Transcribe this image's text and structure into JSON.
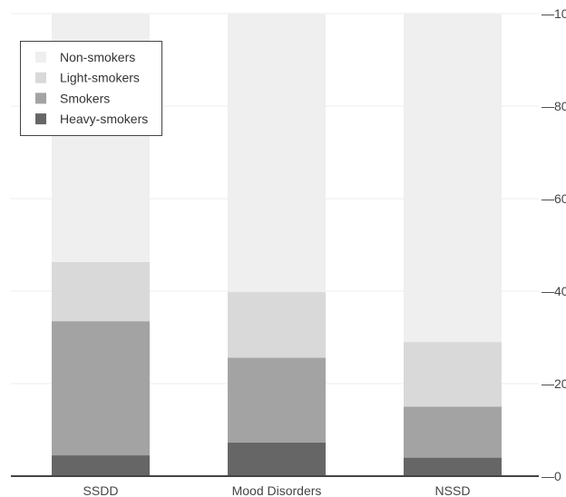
{
  "chart_data": {
    "type": "bar",
    "stacked": true,
    "categories": [
      "SSDD",
      "Mood Disorders",
      "NSSD"
    ],
    "series": [
      {
        "name": "Heavy-smokers",
        "color": "#666666",
        "values": [
          4.5,
          7.3,
          4.0
        ]
      },
      {
        "name": "Smokers",
        "color": "#a3a3a3",
        "values": [
          29.0,
          18.3,
          11.0
        ]
      },
      {
        "name": "Light-smokers",
        "color": "#d9d9d9",
        "values": [
          12.8,
          14.2,
          14.0
        ]
      },
      {
        "name": "Non-smokers",
        "color": "#efefef",
        "values": [
          53.7,
          60.2,
          71.0
        ]
      }
    ],
    "legend_order": [
      "Non-smokers",
      "Light-smokers",
      "Smokers",
      "Heavy-smokers"
    ],
    "ylim": [
      0,
      100
    ],
    "yticks": [
      0,
      20,
      40,
      60,
      80,
      100
    ],
    "y_axis_side": "right",
    "grid": true,
    "legend_position": "top-left",
    "title": "",
    "xlabel": "",
    "ylabel": ""
  }
}
